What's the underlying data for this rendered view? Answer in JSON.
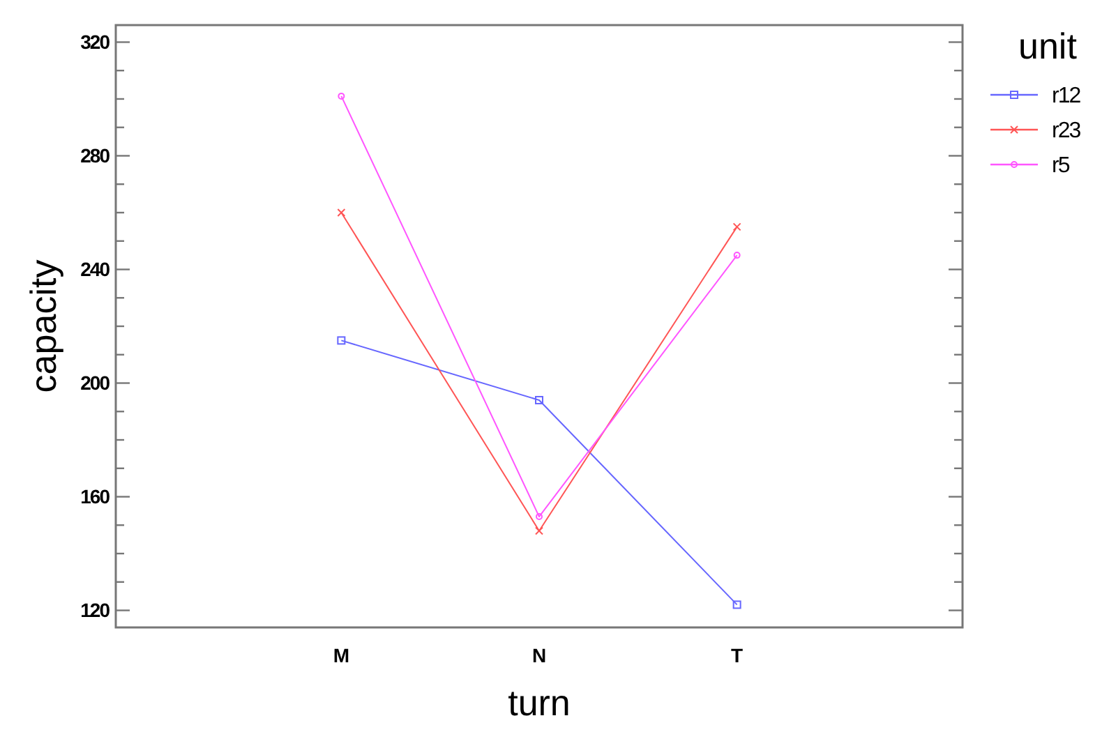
{
  "chart_data": {
    "type": "line",
    "xlabel": "turn",
    "ylabel": "capacity",
    "legend_title": "unit",
    "legend": "top right",
    "grid": false,
    "categories": [
      "M",
      "N",
      "T"
    ],
    "series": [
      {
        "name": "r12",
        "color": "#6666ff",
        "marker": "square",
        "values": [
          215,
          194,
          122
        ]
      },
      {
        "name": "r23",
        "color": "#ff5555",
        "marker": "cross",
        "values": [
          260,
          148,
          255
        ]
      },
      {
        "name": "r5",
        "color": "#ff55ff",
        "marker": "circle",
        "values": [
          301,
          153,
          245
        ]
      }
    ],
    "ylim": [
      114,
      326
    ],
    "yticks": [
      120,
      {
        "value": 130,
        "label": null
      },
      {
        "value": 140,
        "label": null
      },
      {
        "value": 150,
        "label": null
      },
      160,
      {
        "value": 170,
        "label": null
      },
      {
        "value": 180,
        "label": null
      },
      {
        "value": 190,
        "label": null
      },
      200,
      {
        "value": 210,
        "label": null
      },
      {
        "value": 220,
        "label": null
      },
      {
        "value": 230,
        "label": null
      },
      240,
      {
        "value": 250,
        "label": null
      },
      {
        "value": 260,
        "label": null
      },
      {
        "value": 270,
        "label": null
      },
      280,
      {
        "value": 290,
        "label": null
      },
      {
        "value": 300,
        "label": null
      },
      {
        "value": 310,
        "label": null
      },
      320
    ]
  }
}
